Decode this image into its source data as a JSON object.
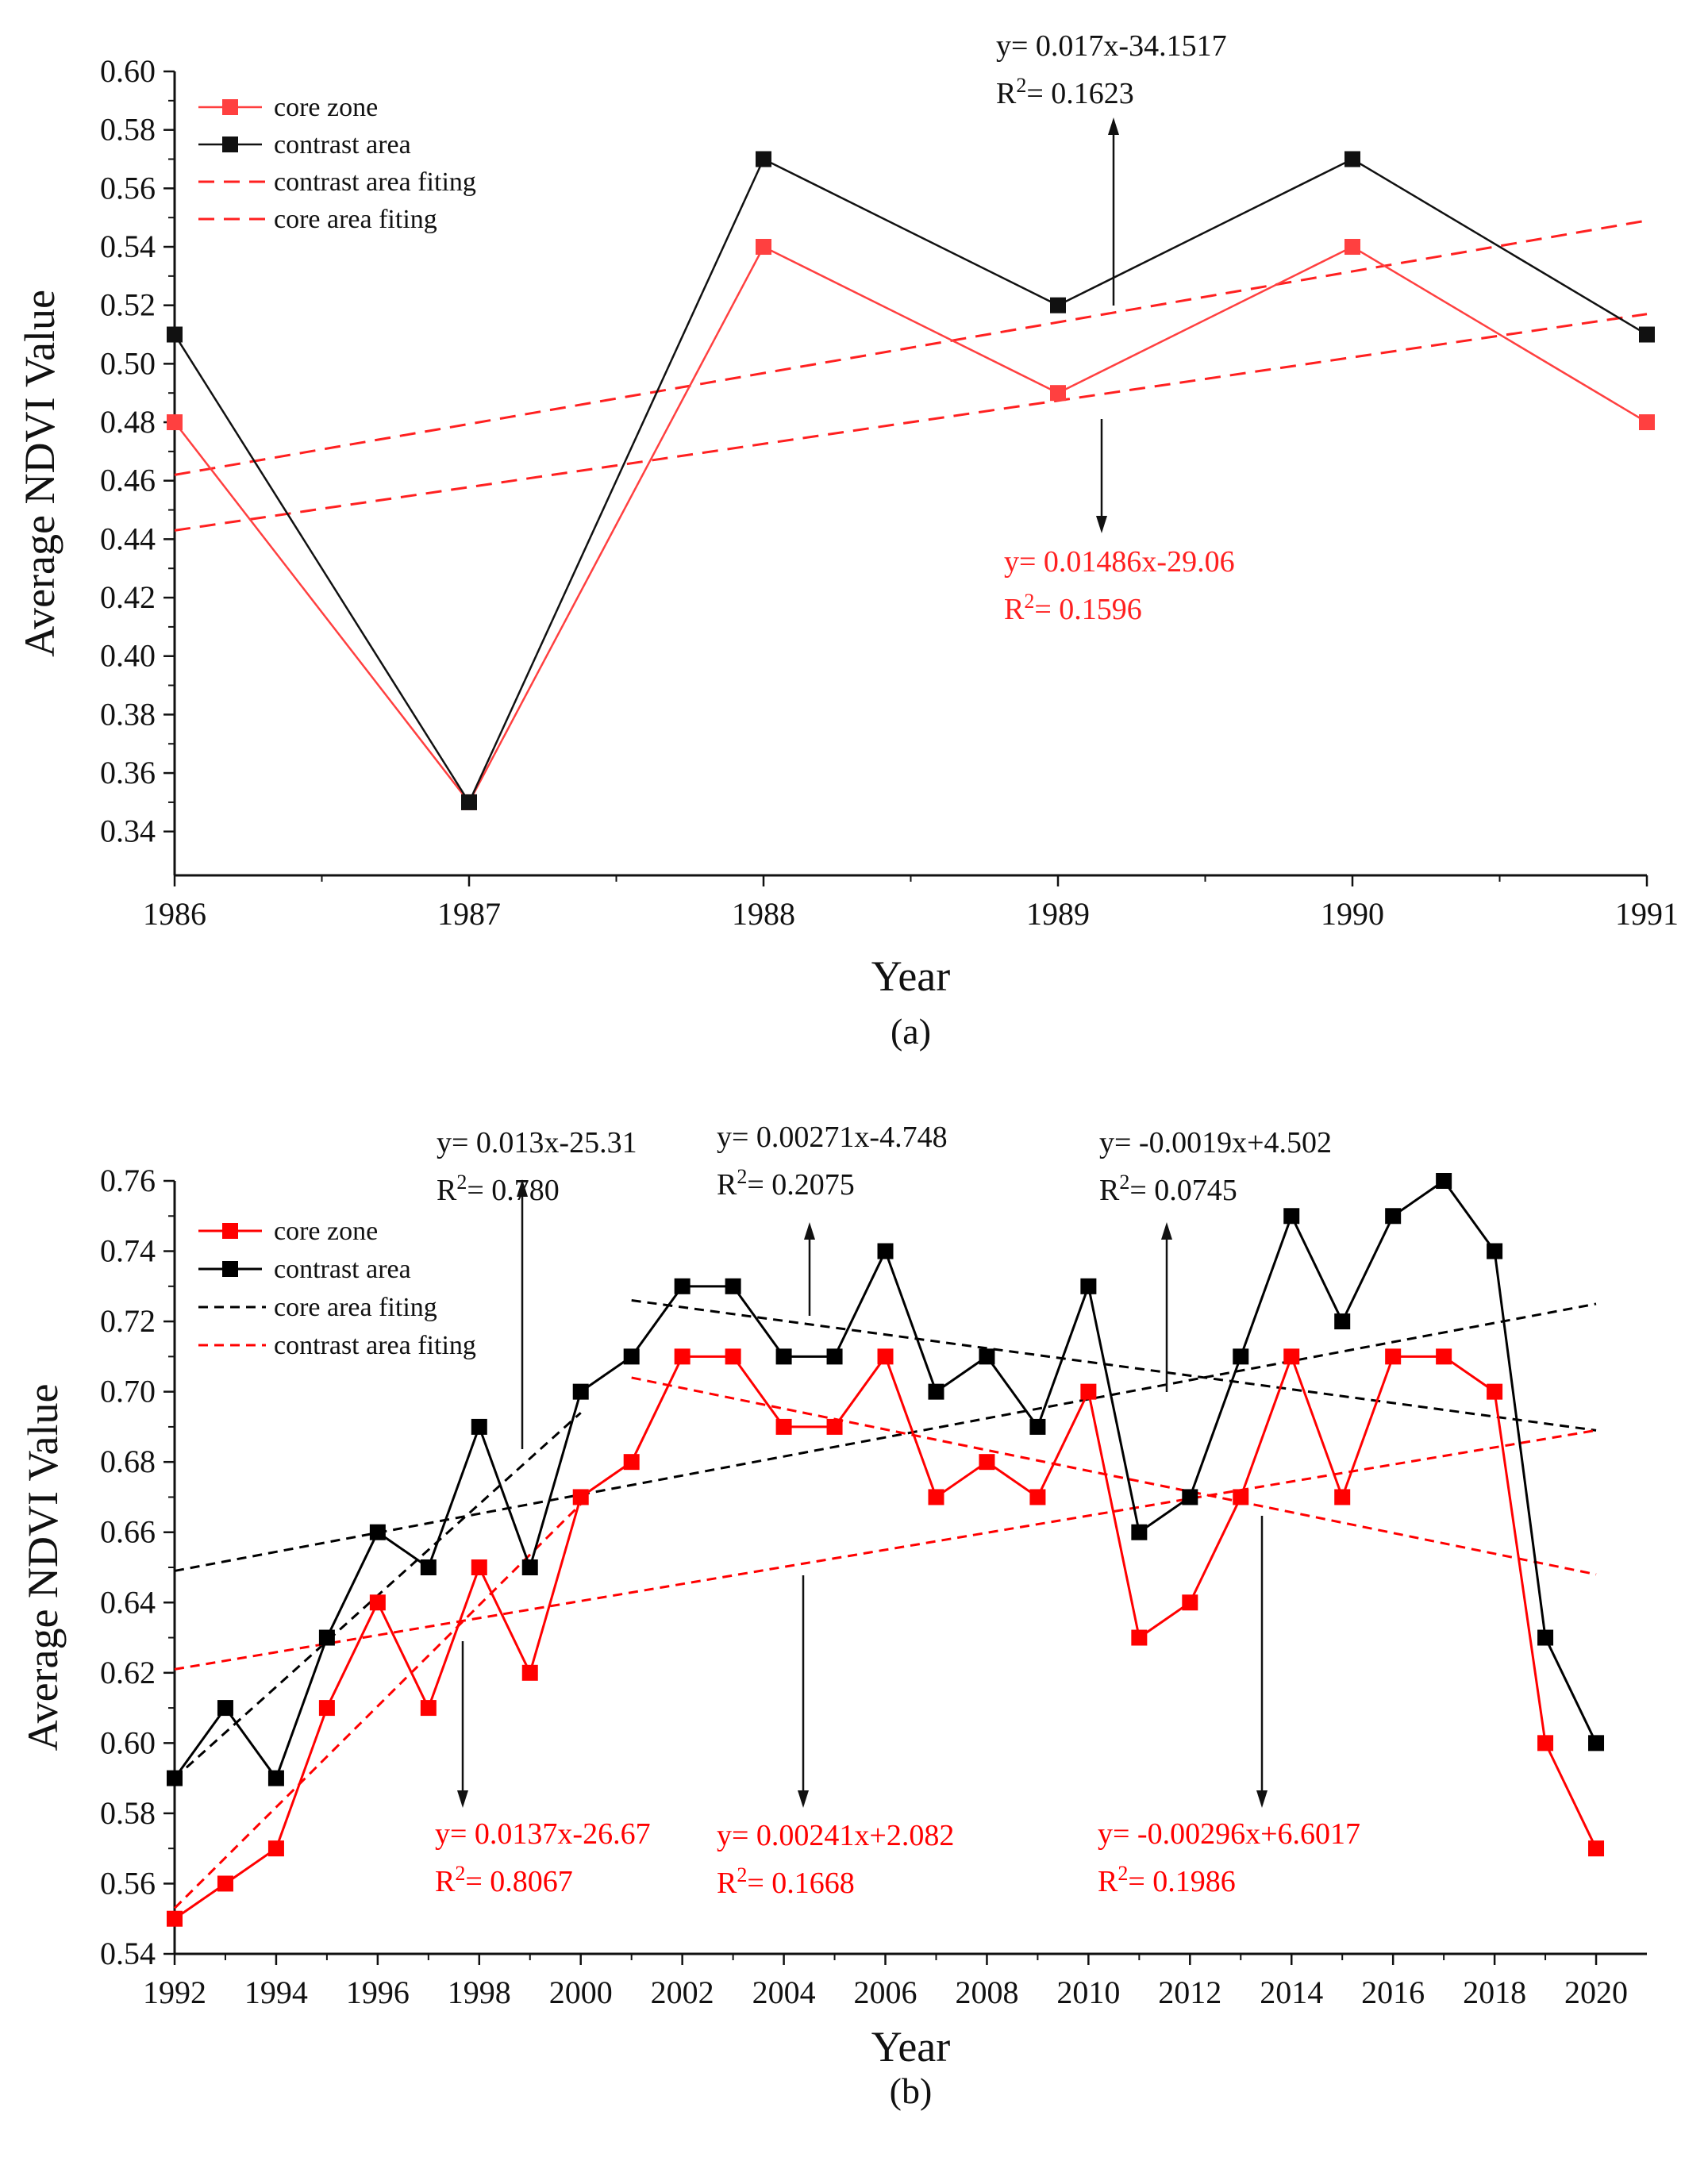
{
  "chart_data": [
    {
      "type": "line",
      "panel_label": "(a)",
      "xlabel": "Year",
      "ylabel": "Average NDVI Value",
      "xlim": [
        1986,
        1991
      ],
      "ylim": [
        0.325,
        0.6
      ],
      "xticks": [
        "1986",
        "1987",
        "1988",
        "1989",
        "1990",
        "1991"
      ],
      "yticks": [
        "0.34",
        "0.36",
        "0.38",
        "0.40",
        "0.42",
        "0.44",
        "0.46",
        "0.48",
        "0.50",
        "0.52",
        "0.54",
        "0.56",
        "0.58",
        "0.60"
      ],
      "x": [
        1986,
        1987,
        1988,
        1989,
        1990,
        1991
      ],
      "series": [
        {
          "name": "core zone",
          "color": "#ff4040",
          "values": [
            0.48,
            0.35,
            0.54,
            0.49,
            0.54,
            0.48
          ]
        },
        {
          "name": "contrast area",
          "color": "#111111",
          "values": [
            0.51,
            0.35,
            0.57,
            0.52,
            0.57,
            0.51
          ]
        }
      ],
      "fits": [
        {
          "name": "contrast area fiting",
          "color": "#ff2020",
          "x": [
            1986,
            1991
          ],
          "y": [
            0.462,
            0.549
          ]
        },
        {
          "name": "core area fiting",
          "color": "#ff2020",
          "x": [
            1986,
            1991
          ],
          "y": [
            0.443,
            0.517
          ]
        }
      ],
      "legend": [
        "core zone",
        "contrast area",
        "contrast area fiting",
        "core area fiting"
      ],
      "legend_position": "top-left",
      "annotations": [
        {
          "eq": "y= 0.017x-34.1517",
          "r2_value": "= 0.1623",
          "color": "#111111"
        },
        {
          "eq": "y= 0.01486x-29.06",
          "r2_value": "= 0.1596",
          "color": "#ff2020"
        }
      ]
    },
    {
      "type": "line",
      "panel_label": "(b)",
      "xlabel": "Year",
      "ylabel": "Average NDVI Value",
      "xlim": [
        1992,
        2021
      ],
      "ylim": [
        0.54,
        0.76
      ],
      "xticks": [
        "1992",
        "1994",
        "1996",
        "1998",
        "2000",
        "2002",
        "2004",
        "2006",
        "2008",
        "2010",
        "2012",
        "2014",
        "2016",
        "2018",
        "2020"
      ],
      "yticks": [
        "0.54",
        "0.56",
        "0.58",
        "0.60",
        "0.62",
        "0.64",
        "0.66",
        "0.68",
        "0.70",
        "0.72",
        "0.74",
        "0.76"
      ],
      "x": [
        1992,
        1993,
        1994,
        1995,
        1996,
        1997,
        1998,
        1999,
        2000,
        2001,
        2002,
        2003,
        2004,
        2005,
        2006,
        2007,
        2008,
        2009,
        2010,
        2011,
        2012,
        2013,
        2014,
        2015,
        2016,
        2017,
        2018,
        2019,
        2020
      ],
      "series": [
        {
          "name": "core zone",
          "color": "#ff0000",
          "values": [
            0.55,
            0.56,
            0.57,
            0.61,
            0.64,
            0.61,
            0.65,
            0.62,
            0.67,
            0.68,
            0.71,
            0.71,
            0.69,
            0.69,
            0.71,
            0.67,
            0.68,
            0.67,
            0.7,
            0.63,
            0.64,
            0.67,
            0.71,
            0.67,
            0.71,
            0.71,
            0.7,
            0.6,
            0.57
          ]
        },
        {
          "name": "contrast area",
          "color": "#000000",
          "values": [
            0.59,
            0.61,
            0.59,
            0.63,
            0.66,
            0.65,
            0.69,
            0.65,
            0.7,
            0.71,
            0.73,
            0.73,
            0.71,
            0.71,
            0.74,
            0.7,
            0.71,
            0.69,
            0.73,
            0.66,
            0.67,
            0.71,
            0.75,
            0.72,
            0.75,
            0.76,
            0.74,
            0.63,
            0.6
          ]
        }
      ],
      "fits": [
        {
          "name": "core area fiting",
          "color": "#000000",
          "x": [
            1992,
            2020
          ],
          "y": [
            0.649,
            0.725
          ]
        },
        {
          "name": "core area fiting",
          "color": "#000000",
          "x": [
            1992,
            2000
          ],
          "y": [
            0.59,
            0.694
          ]
        },
        {
          "name": "core area fiting",
          "color": "#000000",
          "x": [
            2001,
            2020
          ],
          "y": [
            0.726,
            0.689
          ]
        },
        {
          "name": "contrast area fiting",
          "color": "#ff0000",
          "x": [
            1992,
            2020
          ],
          "y": [
            0.621,
            0.689
          ]
        },
        {
          "name": "contrast area fiting",
          "color": "#ff0000",
          "x": [
            1992,
            2000
          ],
          "y": [
            0.553,
            0.668
          ]
        },
        {
          "name": "contrast area fiting",
          "color": "#ff0000",
          "x": [
            2001,
            2020
          ],
          "y": [
            0.704,
            0.648
          ]
        }
      ],
      "legend": [
        "core zone",
        "contrast area",
        "core area fiting",
        "contrast area fiting"
      ],
      "legend_position": "top-left",
      "annotations": [
        {
          "eq": "y= 0.013x-25.31",
          "r2_value": "= 0.780",
          "color": "#111111"
        },
        {
          "eq": "y= 0.00271x-4.748",
          "r2_value": "= 0.2075",
          "color": "#111111"
        },
        {
          "eq": "y= -0.0019x+4.502",
          "r2_value": "= 0.0745",
          "color": "#111111"
        },
        {
          "eq": "y= 0.0137x-26.67",
          "r2_value": "= 0.8067",
          "color": "#ff0000"
        },
        {
          "eq": "y= 0.00241x+2.082",
          "r2_value": "= 0.1668",
          "color": "#ff0000"
        },
        {
          "eq": "y= -0.00296x+6.6017",
          "r2_value": "= 0.1986",
          "color": "#ff0000"
        }
      ]
    }
  ]
}
